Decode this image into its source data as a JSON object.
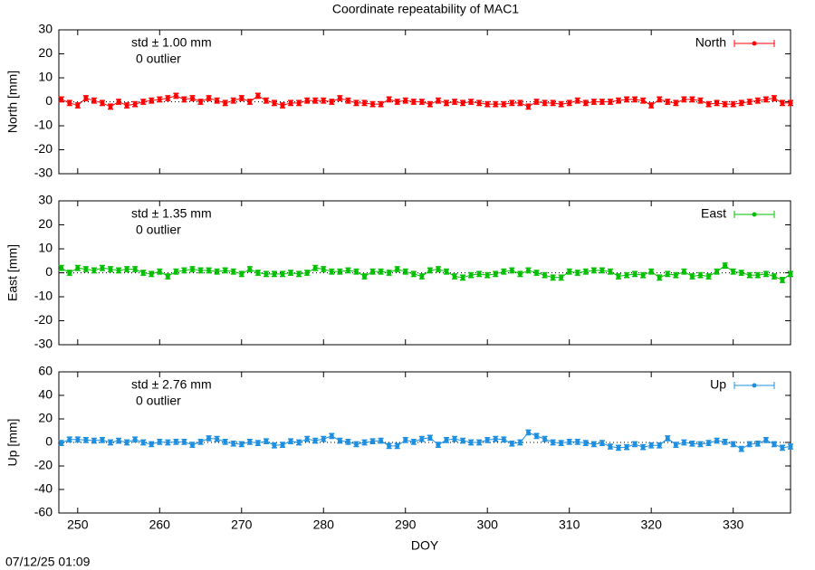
{
  "chart_data": [
    {
      "type": "line",
      "title": "Coordinate repeatability of MAC1",
      "ylabel": "North [mm]",
      "annotations": [
        "std ± 1.00 mm",
        "0 outlier"
      ],
      "x": [
        248,
        249,
        250,
        251,
        252,
        253,
        254,
        255,
        256,
        257,
        258,
        259,
        260,
        261,
        262,
        263,
        264,
        265,
        266,
        267,
        268,
        269,
        270,
        271,
        272,
        273,
        274,
        275,
        276,
        277,
        278,
        279,
        280,
        281,
        282,
        283,
        284,
        285,
        286,
        287,
        288,
        289,
        290,
        291,
        292,
        293,
        294,
        295,
        296,
        297,
        298,
        299,
        300,
        301,
        302,
        303,
        304,
        305,
        306,
        307,
        308,
        309,
        310,
        311,
        312,
        313,
        314,
        315,
        316,
        317,
        318,
        319,
        320,
        321,
        322,
        323,
        324,
        325,
        326,
        327,
        328,
        329,
        330,
        331,
        332,
        333,
        334,
        335,
        336,
        337
      ],
      "series": [
        {
          "name": "North",
          "color": "#ff0000",
          "error": 1,
          "values": [
            1,
            -0.5,
            -1.5,
            1.5,
            0.5,
            -0.5,
            -2,
            0,
            -1.5,
            -1,
            0,
            0.5,
            1,
            1.5,
            2.5,
            1,
            1.5,
            0,
            1.5,
            0.5,
            -0.5,
            0.5,
            1.5,
            0,
            2.5,
            0.5,
            -0.5,
            -1.5,
            -0.5,
            -0.5,
            0.5,
            0.5,
            0.5,
            0,
            1.5,
            0.5,
            -0.5,
            -0.5,
            -1,
            -1,
            1,
            0,
            0.5,
            0,
            0,
            -1,
            0.5,
            -0.5,
            0,
            -0.5,
            0,
            -0.5,
            -1,
            -1,
            -1,
            -0.5,
            -0.5,
            -2,
            0,
            -0.5,
            -0.5,
            -1,
            -0.5,
            0.5,
            -0.5,
            0,
            0,
            0,
            0.5,
            1,
            1,
            0.5,
            -1.5,
            1,
            0,
            -0.5,
            1,
            1,
            0.5,
            -1,
            -0.5,
            -1,
            -1,
            -0.5,
            0,
            0.5,
            1,
            1.5,
            -0.5,
            -0.5
          ]
        }
      ],
      "xlim": [
        247.7,
        337
      ],
      "ylim": [
        -30,
        30
      ],
      "yticks": [
        -30,
        -20,
        -10,
        0,
        10,
        20,
        30
      ],
      "zero_line": true
    },
    {
      "type": "line",
      "ylabel": "East [mm]",
      "annotations": [
        "std ± 1.35 mm",
        "0 outlier"
      ],
      "x": [
        248,
        249,
        250,
        251,
        252,
        253,
        254,
        255,
        256,
        257,
        258,
        259,
        260,
        261,
        262,
        263,
        264,
        265,
        266,
        267,
        268,
        269,
        270,
        271,
        272,
        273,
        274,
        275,
        276,
        277,
        278,
        279,
        280,
        281,
        282,
        283,
        284,
        285,
        286,
        287,
        288,
        289,
        290,
        291,
        292,
        293,
        294,
        295,
        296,
        297,
        298,
        299,
        300,
        301,
        302,
        303,
        304,
        305,
        306,
        307,
        308,
        309,
        310,
        311,
        312,
        313,
        314,
        315,
        316,
        317,
        318,
        319,
        320,
        321,
        322,
        323,
        324,
        325,
        326,
        327,
        328,
        329,
        330,
        331,
        332,
        333,
        334,
        335,
        336,
        337
      ],
      "series": [
        {
          "name": "East",
          "color": "#00c000",
          "error": 1,
          "values": [
            2,
            0,
            2,
            1.5,
            1,
            2,
            1.5,
            1,
            1.5,
            1.5,
            0,
            -0.5,
            0.5,
            -1.5,
            0.5,
            1,
            1.5,
            1,
            1,
            0.5,
            1,
            0.5,
            -0.5,
            1.5,
            0,
            -0.5,
            -0.5,
            -0.5,
            0,
            -0.5,
            0,
            2,
            1.5,
            0.5,
            0.5,
            1,
            0.5,
            -1.5,
            0.5,
            0.5,
            0,
            1.5,
            0.5,
            -0.5,
            -1.5,
            1,
            1.5,
            0.5,
            -1.5,
            -2,
            -1,
            -0.5,
            -1,
            -0.5,
            0.5,
            1,
            -0.5,
            1,
            0,
            -1,
            -2,
            -2,
            0.5,
            0,
            0.5,
            1,
            1,
            0.5,
            -1.5,
            -1,
            -0.5,
            -1,
            0.5,
            -2,
            -0.5,
            -1,
            0.5,
            -1.5,
            -1,
            -1.5,
            0.5,
            3,
            0.5,
            0,
            -1,
            -1,
            -0.5,
            -1.5,
            -3,
            -0.5
          ]
        }
      ],
      "xlim": [
        247.7,
        337
      ],
      "ylim": [
        -30,
        30
      ],
      "yticks": [
        -30,
        -20,
        -10,
        0,
        10,
        20,
        30
      ],
      "zero_line": true
    },
    {
      "type": "line",
      "ylabel": "Up [mm]",
      "xlabel": "DOY",
      "annotations": [
        "std ± 2.76 mm",
        "0 outlier"
      ],
      "x": [
        248,
        249,
        250,
        251,
        252,
        253,
        254,
        255,
        256,
        257,
        258,
        259,
        260,
        261,
        262,
        263,
        264,
        265,
        266,
        267,
        268,
        269,
        270,
        271,
        272,
        273,
        274,
        275,
        276,
        277,
        278,
        279,
        280,
        281,
        282,
        283,
        284,
        285,
        286,
        287,
        288,
        289,
        290,
        291,
        292,
        293,
        294,
        295,
        296,
        297,
        298,
        299,
        300,
        301,
        302,
        303,
        304,
        305,
        306,
        307,
        308,
        309,
        310,
        311,
        312,
        313,
        314,
        315,
        316,
        317,
        318,
        319,
        320,
        321,
        322,
        323,
        324,
        325,
        326,
        327,
        328,
        329,
        330,
        331,
        332,
        333,
        334,
        335,
        336,
        337
      ],
      "series": [
        {
          "name": "Up",
          "color": "#1e8fe0",
          "error": 2,
          "values": [
            -0.5,
            2.5,
            2.5,
            2,
            1.5,
            2,
            0,
            1.5,
            0,
            2.5,
            0,
            -1.5,
            0.5,
            0,
            0.5,
            0.5,
            -2,
            0.5,
            3.5,
            3,
            0.5,
            -1,
            -1.5,
            0.5,
            -0.5,
            1,
            -2.5,
            -2,
            1,
            0,
            3,
            1.5,
            3,
            5.5,
            1.5,
            0.5,
            -1.5,
            0,
            1,
            1.5,
            -3,
            -3,
            2,
            0.5,
            3,
            4,
            -2,
            2,
            3,
            1.5,
            0,
            0,
            2,
            3,
            2.5,
            -1,
            0,
            8.5,
            5.5,
            3,
            0,
            -0.5,
            0.5,
            0.5,
            -0.5,
            -1.5,
            -0.5,
            -3.5,
            -4.5,
            -4,
            -1.5,
            -4,
            -2.5,
            -2.5,
            3.5,
            -2,
            0,
            -1,
            -1.5,
            -0.5,
            1.5,
            0.5,
            -1.5,
            -5.5,
            -1.5,
            -1,
            2,
            -1.5,
            -4.5,
            -3.5
          ]
        }
      ],
      "xlim": [
        247.7,
        337
      ],
      "ylim": [
        -60,
        60
      ],
      "yticks": [
        -60,
        -40,
        -20,
        0,
        20,
        40,
        60
      ],
      "xticks": [
        250,
        260,
        270,
        280,
        290,
        300,
        310,
        320,
        330
      ],
      "zero_line": true
    }
  ],
  "footer": "07/12/25 01:09"
}
